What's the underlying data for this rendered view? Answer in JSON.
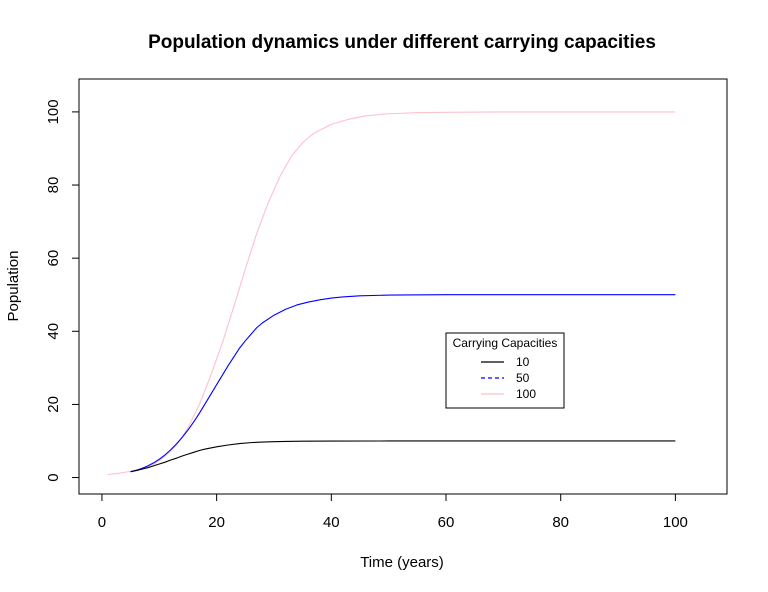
{
  "chart_data": {
    "type": "line",
    "title": "Population dynamics under different carrying capacities",
    "xlabel": "Time (years)",
    "ylabel": "Population",
    "xlim": [
      -4,
      109
    ],
    "ylim": [
      -4.5,
      109
    ],
    "x_ticks": [
      0,
      20,
      40,
      60,
      80,
      100
    ],
    "y_ticks": [
      0,
      20,
      40,
      60,
      80,
      100
    ],
    "grid": false,
    "legend": {
      "title": "Carrying Capacities",
      "placement": "center-right",
      "entries": [
        {
          "label": "10",
          "color": "#000000",
          "dash": "solid"
        },
        {
          "label": "50",
          "color": "#0000ff",
          "dash": "dashed"
        },
        {
          "label": "100",
          "color": "#ffc0cb",
          "dash": "solid"
        }
      ]
    },
    "series": [
      {
        "capacity": 10,
        "color": "#000000",
        "x": [
          5,
          6,
          7,
          8,
          9,
          10,
          11,
          12,
          13,
          14,
          15,
          16,
          17,
          18,
          19,
          20,
          22,
          24,
          26,
          28,
          30,
          32,
          35,
          40,
          50,
          60,
          70,
          80,
          90,
          100
        ],
        "values": [
          1.6,
          1.9,
          2.3,
          2.7,
          3.2,
          3.7,
          4.2,
          4.8,
          5.3,
          5.9,
          6.4,
          6.9,
          7.4,
          7.8,
          8.1,
          8.4,
          8.9,
          9.3,
          9.55,
          9.7,
          9.82,
          9.88,
          9.94,
          9.98,
          10,
          10,
          10,
          10,
          10,
          10
        ]
      },
      {
        "capacity": 50,
        "color": "#0000ff",
        "x": [
          5,
          6,
          7,
          8,
          9,
          10,
          11,
          12,
          13,
          14,
          15,
          16,
          17,
          18,
          19,
          20,
          21,
          22,
          23,
          24,
          25,
          26,
          27,
          28,
          30,
          32,
          34,
          36,
          38,
          40,
          42,
          45,
          50,
          60,
          70,
          80,
          90,
          100
        ],
        "values": [
          1.6,
          2.0,
          2.5,
          3.2,
          4.0,
          5.0,
          6.2,
          7.6,
          9.2,
          11.0,
          13.0,
          15.2,
          17.6,
          20.2,
          22.8,
          25.4,
          28.0,
          30.6,
          33.0,
          35.4,
          37.4,
          39.2,
          41.0,
          42.3,
          44.4,
          46.0,
          47.2,
          48.0,
          48.6,
          49.1,
          49.4,
          49.7,
          49.9,
          50,
          50,
          50,
          50,
          50
        ]
      },
      {
        "capacity": 100,
        "color": "#ffc0cb",
        "x": [
          1,
          3,
          5,
          7,
          9,
          11,
          13,
          15,
          17,
          19,
          21,
          23,
          25,
          27,
          29,
          31,
          33,
          35,
          37,
          40,
          43,
          46,
          50,
          55,
          60,
          70,
          80,
          90,
          100
        ],
        "values": [
          0.8,
          1.2,
          1.7,
          2.5,
          3.6,
          5.8,
          8.8,
          13.6,
          20.0,
          28.0,
          36.8,
          46.8,
          57.0,
          66.8,
          75.2,
          82.2,
          87.8,
          91.6,
          94.2,
          96.6,
          98.0,
          98.9,
          99.5,
          99.8,
          99.9,
          100,
          100,
          100,
          100
        ]
      }
    ]
  }
}
